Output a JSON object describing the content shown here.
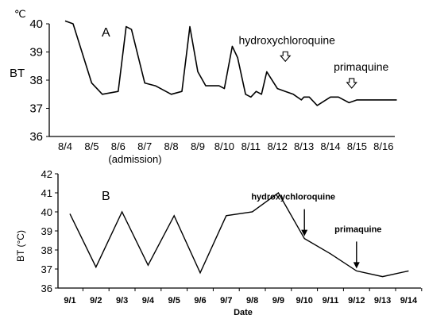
{
  "chart_data": [
    {
      "type": "line",
      "panel_label": "A",
      "unit_label": "℃",
      "ylabel": "BT",
      "xlabel": "",
      "ylim": [
        36,
        40
      ],
      "yticks": [
        36,
        37,
        38,
        39,
        40
      ],
      "categories": [
        "8/4",
        "8/5",
        "8/6",
        "8/7",
        "8/8",
        "8/9",
        "8/10",
        "8/11",
        "8/12",
        "8/13",
        "8/14",
        "8/15",
        "8/16"
      ],
      "category_note": "(admission)",
      "grid": false,
      "series": [
        {
          "x": [
            0,
            0.3,
            1,
            1.4,
            2,
            2.3,
            2.5,
            3,
            3.4,
            4,
            4.4,
            4.7,
            5,
            5.3,
            5.5,
            5.8,
            6,
            6.3,
            6.5,
            6.8,
            7,
            7.2,
            7.4,
            7.6,
            8,
            8.3,
            8.6,
            8.9,
            9,
            9.2,
            9.5,
            10,
            10.3,
            10.7,
            11,
            11.4,
            11.8,
            12.5
          ],
          "values": [
            40.1,
            40.0,
            37.9,
            37.5,
            37.6,
            39.9,
            39.8,
            37.9,
            37.8,
            37.5,
            37.6,
            39.9,
            38.3,
            37.8,
            37.8,
            37.8,
            37.7,
            39.2,
            38.8,
            37.5,
            37.4,
            37.6,
            37.5,
            38.3,
            37.7,
            37.6,
            37.5,
            37.3,
            37.4,
            37.4,
            37.1,
            37.4,
            37.4,
            37.2,
            37.3,
            37.3,
            37.3,
            37.3
          ]
        }
      ],
      "annotations": [
        {
          "text": "hydroxychloroquine",
          "x": 8.3,
          "y": 38.5,
          "arrow": "hollow"
        },
        {
          "text": "primaquine",
          "x": 10.8,
          "y": 37.55,
          "arrow": "hollow"
        }
      ]
    },
    {
      "type": "line",
      "panel_label": "B",
      "ylabel": "BT (°C)",
      "xlabel": "Date",
      "ylim": [
        36,
        42
      ],
      "yticks": [
        36,
        37,
        38,
        39,
        40,
        41,
        42
      ],
      "categories": [
        "9/1",
        "9/2",
        "9/3",
        "9/4",
        "9/5",
        "9/6",
        "9/7",
        "9/8",
        "9/9",
        "9/10",
        "9/11",
        "9/12",
        "9/13",
        "9/14"
      ],
      "grid": false,
      "series": [
        {
          "values": [
            39.9,
            37.1,
            40.0,
            37.2,
            39.8,
            36.8,
            39.8,
            40.0,
            41.0,
            38.6,
            37.8,
            36.9,
            36.6,
            36.9
          ]
        }
      ],
      "annotations": [
        {
          "text": "hydroxychloroquine",
          "x": 9,
          "y": 38.6,
          "arrow": "solid"
        },
        {
          "text": "primaquine",
          "x": 11,
          "y": 36.9,
          "arrow": "solid"
        }
      ]
    }
  ]
}
